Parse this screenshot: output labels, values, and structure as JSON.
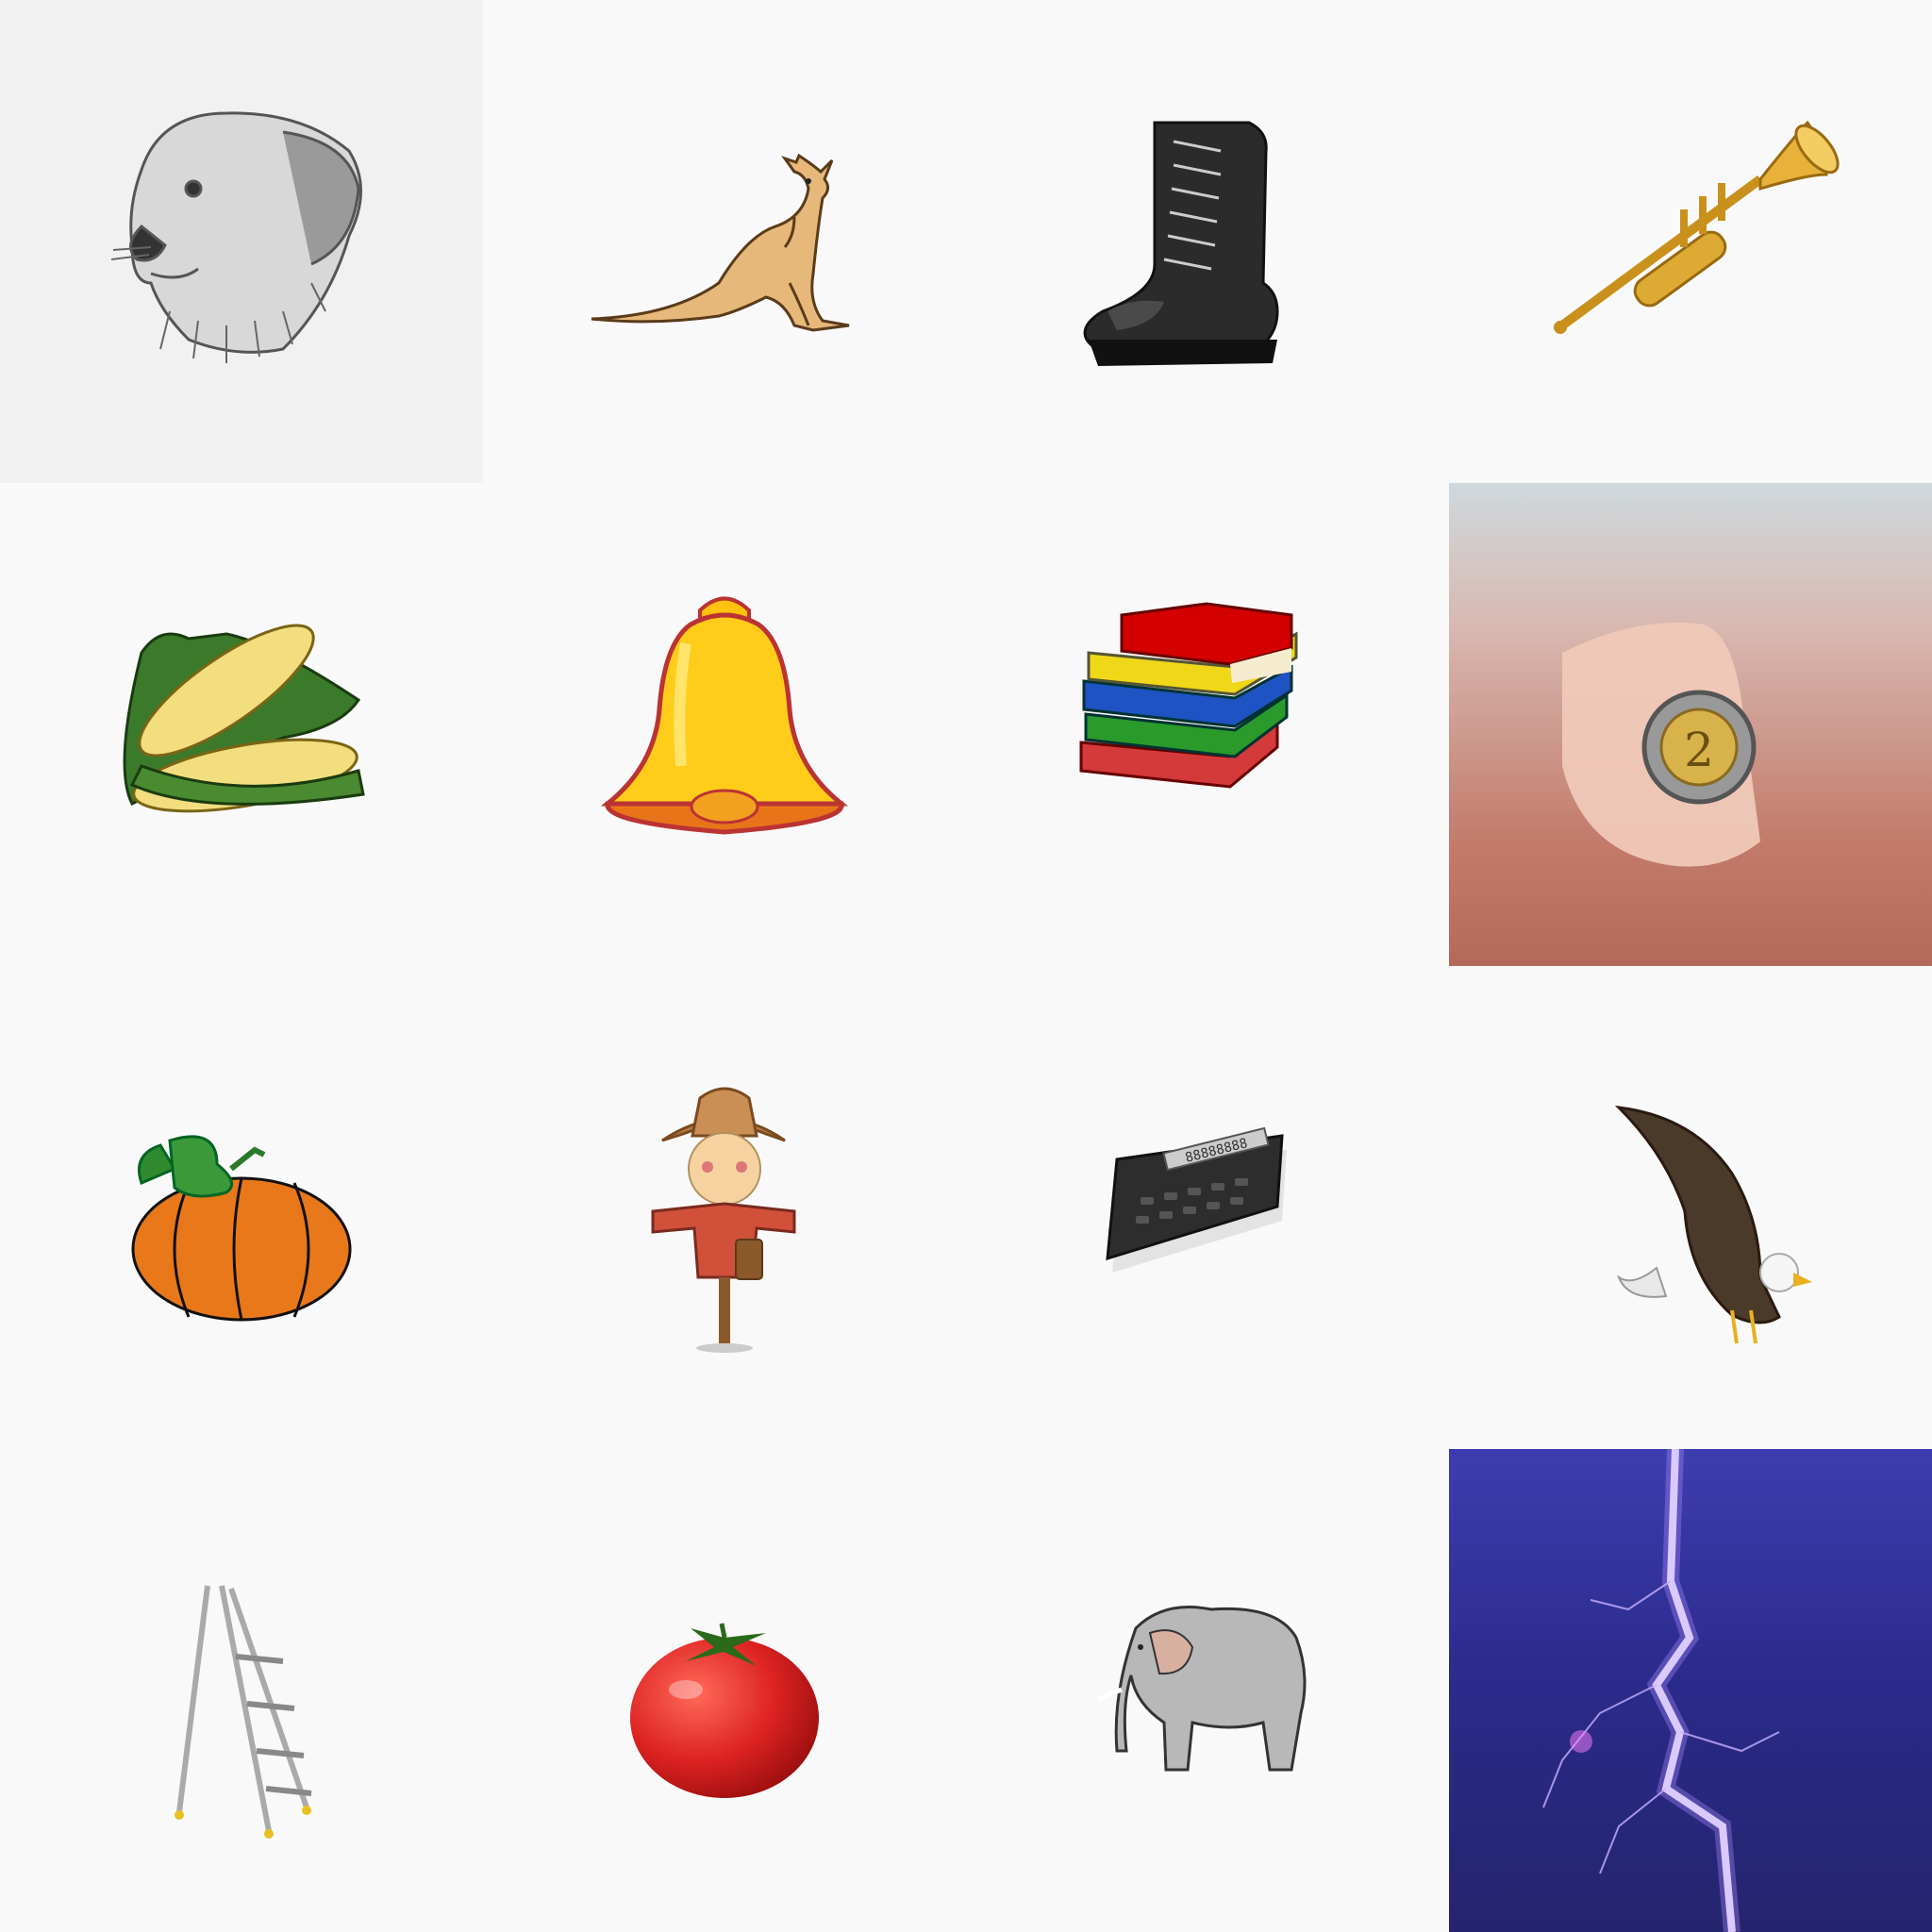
{
  "grid": {
    "rows": 4,
    "columns": 4,
    "tile_background": "#f9f9f9",
    "items": [
      {
        "name": "dog",
        "icon": "dog-sketch-icon",
        "background": "#f1f1f1"
      },
      {
        "name": "kangaroo",
        "icon": "kangaroo-icon"
      },
      {
        "name": "boot",
        "icon": "boot-icon"
      },
      {
        "name": "trumpet",
        "icon": "trumpet-icon"
      },
      {
        "name": "corn",
        "icon": "corn-icon"
      },
      {
        "name": "bell",
        "icon": "bell-icon"
      },
      {
        "name": "books",
        "icon": "books-icon"
      },
      {
        "name": "coin",
        "icon": "coin-in-hand-photo",
        "coin_text": "2"
      },
      {
        "name": "pumpkin",
        "icon": "pumpkin-icon"
      },
      {
        "name": "scarecrow",
        "icon": "scarecrow-icon"
      },
      {
        "name": "calculator",
        "icon": "calculator-icon",
        "display_text": "88888888"
      },
      {
        "name": "eagle",
        "icon": "eagle-icon"
      },
      {
        "name": "ladder",
        "icon": "step-ladder-icon"
      },
      {
        "name": "tomato",
        "icon": "tomato-icon"
      },
      {
        "name": "elephant",
        "icon": "elephant-icon"
      },
      {
        "name": "lightning",
        "icon": "lightning-photo"
      }
    ]
  }
}
